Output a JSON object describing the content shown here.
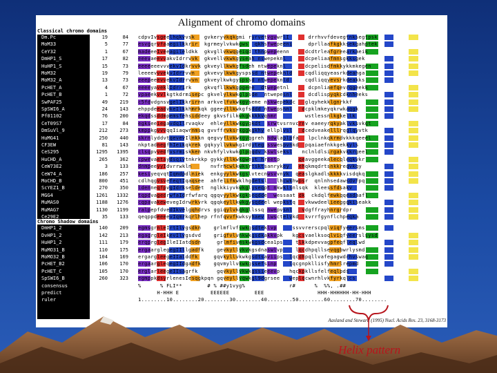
{
  "title": "Alignment of chromo domains",
  "sections": [
    {
      "label": "Classical chromo domains"
    },
    {
      "label": "Chromo Shadow domains"
    }
  ],
  "rows": [
    {
      "name": "Dm.Pc",
      "start": "19",
      "end": "84",
      "seq": "cdpvIvsgeelhqkvvsk   gvkeryvkqkgmi ryrvetvgvwrlI      drrhvvfdevegtnksegtpsk"
    },
    {
      "name": "MoM33",
      "start": "5",
      "end": "77",
      "seq": "esvgqrvfaaegilkkrir  kgrmeylvkwkgws  qkhsfwepeeni     dprllaafkgkksekgahptek"
    },
    {
      "name": "CeY32",
      "start": "1",
      "end": "67",
      "seq": "madeeeIveeagileldkk  gkvgllvkwqgeiqd thnpwepeenn     dcdtrleafgreearkaeik"
    },
    {
      "name": "DmHP1_S",
      "start": "17",
      "end": "82",
      "seq": "eeevaeevvakvIdrrvvk  gkvellvkwkgyseah nswepeknl      dcpeliaafmnsgkksgek"
    },
    {
      "name": "HuHP1_S",
      "start": "15",
      "end": "73",
      "seq": "eeeeeeevvvekvIdkrvvk gkveyllkwkgfsdeh ntwepeknl      dcpelisdfmkkykkmkegen"
    },
    {
      "name": "MoM32",
      "start": "19",
      "end": "79",
      "seq": "leeeevvvekvIdrrvvn   gkvevylkwkgyspssd ntwepeknld    cqdliqqyeasrkdeanga"
    },
    {
      "name": "MoM32_A",
      "start": "13",
      "end": "73",
      "seq": "eeepeeevvekvIdrrvvn  gkveylkwkgyspssd ntwepeknld     cqdliqqyevsrkdeakks"
    },
    {
      "name": "PcHET_A",
      "start": "4",
      "end": "67",
      "seq": "eeeeyaveklIdrrirk    gkvqfllkwkgpgeee  dtwepetnl      dcpnliaefqevrqgeekk"
    },
    {
      "name": "PcHET_B",
      "start": "1",
      "end": "72",
      "seq": "vpaeekvvlkgtkdrmisepc gkvelylkwkglpsde  ntwepesnl     dcdlispyqkcdknheeks"
    },
    {
      "name": "SwPAF25",
      "start": "49",
      "end": "219",
      "seq": "c5fdvdgnsvgelIkkrirnn arkvelfvkwkgyseme nskwepekdc   glqyhekklgnrkkf"
    },
    {
      "name": "SpSWI6_A",
      "start": "24",
      "end": "143",
      "seq": "ehppdeeadvkeIlkkhmrkqk ggeeyllkwkgfsddd ntwepsnnl   dcpklmkeyqkrwkaqgk"
    },
    {
      "name": "Pf01102",
      "start": "76",
      "end": "200",
      "seq": "ekqdssddmpemsfehsiddeey gkvsfilkwkgkkkkvqnmr         wstlessnlkgkellk"
    },
    {
      "name": "CeT09S7",
      "start": "17",
      "end": "84",
      "seq": "egkseeiegavdqIlrvaqkv  ehleyllkwkgygkdt  srwtvsrnvcrnv eaeeyrqkyaklvksvkqt"
    },
    {
      "name": "DmSuVl_9",
      "start": "212",
      "end": "273",
      "seq": "kmppkgvvvqqIiaqwrnmsq gvvffrvksrkggkgkhy ellplvsl   dcedveakelllrqglqyvtk"
    },
    {
      "name": "HuMG41",
      "start": "250",
      "end": "440",
      "seq": "skrnlyddvtqevevIlnkkn qegvyflvkwkgyqgreh ndwlaplpfa   lpclnkqkrmdvkkkqeeel"
    },
    {
      "name": "CF3EW",
      "start": "81",
      "end": "143",
      "seq": "nkptadnegfhIeikqkrek gqkyyllvkwkg1rdyteg sswespvnkd  pqaiaefnkkgekkyls"
    },
    {
      "name": "CeS295",
      "start": "1295",
      "end": "1395",
      "seq": "clsqpvvedfvsrmiskken nkvhfylvkwkglpqqdv kswlseksl   nclnldlsirgakvkkrgeel"
    },
    {
      "name": "HuCHD_A",
      "start": "265",
      "end": "362",
      "seq": "cpwevaetaydsqivtnkrkkp gykkyllkwkgweyt hreetp      qeavggeekalecqleqkvkr"
    },
    {
      "name": "CeW73E2",
      "start": "3",
      "end": "133",
      "seq": "dnmpeeyyIdvrrwkln      nvfrhcwlkwksrtsktsanrykey   ehqkmqdrtsnkkreqvkqy"
    },
    {
      "name": "CeW74_A",
      "start": "186",
      "end": "257",
      "seq": "kesiyeqvqtIqmdpdlniek  enkgyylkwkgslvtecnwsvvnyk  qeaslgkadlskkkkvisdqkq"
    },
    {
      "name": "MoCHD_B",
      "start": "800",
      "end": "451",
      "seq": "cdlhqgvsvefeqtIqaqsee  ahfelifkwklhgdetsl   lhcwkhwpsr  qnlnhsedawsdvfpq"
    },
    {
      "name": "ScYEZ1_B",
      "start": "270",
      "end": "350",
      "seq": "ldenneqfpvgIdrkseldet  nglkkiyvkwkglyseqpt nkwklsnlsqk  kleessfdsakv"
    },
    {
      "name": "MGG4",
      "start": "1261",
      "end": "1332",
      "seq": "tqpdvagedrwfaIdrfwfarq qgqvyylkwkgkseqdde  wessaat dk  ckdqlfewkqqeadaafl"
    },
    {
      "name": "MuMAS0",
      "start": "1188",
      "end": "1276",
      "seq": "cqpavakewevegIdrwrkvrk qgqkeyllkwkgysqdeel wepkstq   vkwwdeelieeggqkiseakk"
    },
    {
      "name": "MuMAG7",
      "start": "1130",
      "end": "1199",
      "seq": "ralpepfdvedIkvelgqhdrvs ggiqylvkqkgllssq nwepvsnl   vdgffrayhnrgrdpr"
    },
    {
      "name": "Ce29E2",
      "start": "35",
      "end": "133",
      "seq": "qeqppdeeeevIqmrkqrlhep rfnfqvvfkwksyhaev lwsctelvkd  kvrrfgynflchpeqka"
    },
    {
      "name": "DmHP1_2",
      "start": "140",
      "end": "209",
      "seq": "egmsgrnleIrtIlvgsdkn    grlmflvfswkgsdteklvp     ssvvrerscpqlviqfyeersms"
    },
    {
      "name": "DvHP1_2",
      "start": "142",
      "end": "213",
      "seq": "egagrgleIkevIlvgsdvd    grigfvlvnkwkgsdkakkvpk   kgcsvaelksoqlviqfyeerslsysd"
    },
    {
      "name": "HuHP1_2",
      "start": "111",
      "end": "179",
      "seq": "erqprglegIleIIatdsdn     grlmfivmskwkgsdcea1ps    tlkkdpevvagpfeqfleqlwd"
    },
    {
      "name": "MuMO31_B",
      "start": "110",
      "end": "175",
      "seq": "ergaarglegegIIllgadfk    gevkyllvkvkgsdnaswlvp    lqcdhpqllsevqgbwrlysmd"
    },
    {
      "name": "MoMO32_B",
      "start": "104",
      "end": "169",
      "seq": "ergargleegeIIalddfk     gqvkyllvkwkgsdtsaviips  lqcdhpqllvafegagwdrhvswaq"
    },
    {
      "name": "PcHET_B2",
      "start": "106",
      "end": "170",
      "seq": "ergaargleqegIIdgadfk    gqvmyllvkwkgssefsinp    lqcgnpkllisfyhmrlrepmd"
    },
    {
      "name": "PcHET_C",
      "start": "105",
      "end": "170",
      "seq": "erglarleegeIIsagrfk      gqvkyllvkwkgssieeevp   hqckpkllsfelfeqlpds"
    },
    {
      "name": "SpSWI6_B",
      "start": "260",
      "end": "323",
      "seq": "egmppkdsyrlenesIesqgkpqn gqveyllvqwkgl9dgrsee   weplqcwnrhlvkfyrkqlcs"
    }
  ],
  "footer_rows": [
    {
      "name": "consensus",
      "seq": "%      % FLI**        # % ##y1vyg%              r#      %  %%, .##"
    },
    {
      "name": "predict",
      "seq": "      H-HHH E          EEEEEE        EEE                 HHH-HHHHHH-HH-HHH"
    },
    {
      "name": "ruler",
      "seq": "1........10........20........30........40........50........60........70........"
    }
  ],
  "citation": "Aasland and Stewart, (1995) Nucl. Acids Res. 23, 3168-3173",
  "annotation": "Helix pattern",
  "colors": {
    "hydrophobic": "#2447c9",
    "aromatic": "#16a320",
    "acidic": "#e0302f",
    "basic": "#7a2fc4",
    "glycine": "#f0a020",
    "polar": "#f3e44a",
    "helix_label": "#b7141c"
  }
}
